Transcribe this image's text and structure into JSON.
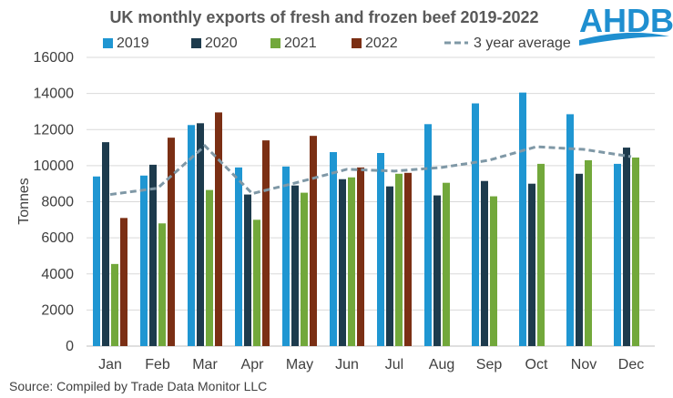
{
  "chart_data": {
    "type": "bar",
    "title": "UK monthly exports of fresh and frozen beef 2019-2022",
    "ylabel": "Tonnes",
    "xlabel": "",
    "ylim": [
      0,
      16000
    ],
    "yticks": [
      0,
      2000,
      4000,
      6000,
      8000,
      10000,
      12000,
      14000,
      16000
    ],
    "categories": [
      "Jan",
      "Feb",
      "Mar",
      "Apr",
      "May",
      "Jun",
      "Jul",
      "Aug",
      "Sep",
      "Oct",
      "Nov",
      "Dec"
    ],
    "grid": "horizontal",
    "legend_position": "top",
    "series": [
      {
        "name": "2019",
        "kind": "bar",
        "color": "#1f96d2",
        "values": [
          9400,
          9450,
          12250,
          9900,
          9950,
          10750,
          10700,
          12300,
          13450,
          14050,
          12850,
          10100
        ]
      },
      {
        "name": "2020",
        "kind": "bar",
        "color": "#1d3b4d",
        "values": [
          11300,
          10050,
          12350,
          8400,
          8900,
          9250,
          8850,
          8350,
          9150,
          9000,
          9550,
          11000
        ]
      },
      {
        "name": "2021",
        "kind": "bar",
        "color": "#72a83b",
        "values": [
          4550,
          6800,
          8650,
          7000,
          8500,
          9350,
          9550,
          9050,
          8300,
          10100,
          10300,
          10450
        ]
      },
      {
        "name": "2022",
        "kind": "bar",
        "color": "#7b2f14",
        "values": [
          7100,
          11550,
          12950,
          11400,
          11650,
          9900,
          9600,
          null,
          null,
          null,
          null,
          null
        ]
      },
      {
        "name": "3 year average",
        "kind": "line",
        "color": "#7f98a6",
        "dash": true,
        "values": [
          8400,
          8750,
          11100,
          8450,
          9100,
          9800,
          9700,
          9900,
          10300,
          11050,
          10900,
          10500
        ]
      }
    ]
  },
  "source_text": "Source: Compiled by Trade Data Monitor LLC",
  "logo_text": "AHDB"
}
